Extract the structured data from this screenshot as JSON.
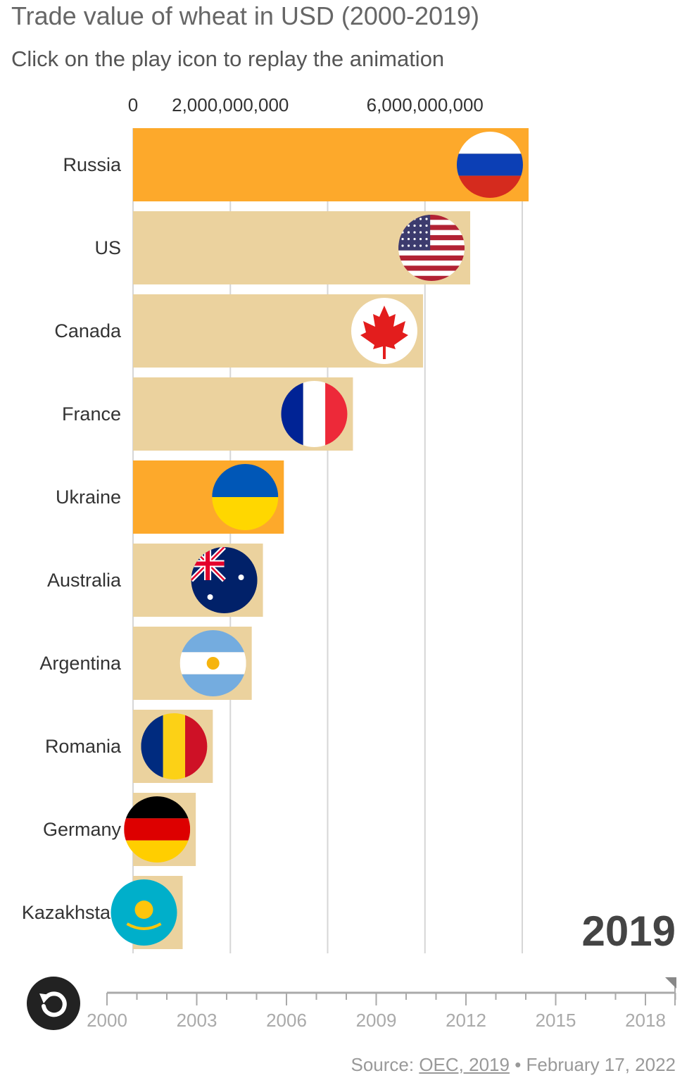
{
  "header": {
    "title": "Trade value of wheat in USD (2000-2019)",
    "subtitle": "Click on the play icon to replay the animation"
  },
  "current_year": "2019",
  "controls": {
    "replay_icon": "replay-icon"
  },
  "timeline": {
    "ticks": [
      "2000",
      "2003",
      "2006",
      "2009",
      "2012",
      "2015",
      "2018"
    ]
  },
  "footer": {
    "source_prefix": "Source: ",
    "source_link": "OEC, 2019",
    "separator": " • ",
    "date": "February 17, 2022"
  },
  "colors": {
    "highlight": "#FDA92B",
    "default": "#EBD29E",
    "grid": "#d6d6d6"
  },
  "chart_data": {
    "type": "bar",
    "orientation": "horizontal",
    "title": "Trade value of wheat in USD (2000-2019)",
    "axis_ticks": [
      {
        "value": 0,
        "label": "0"
      },
      {
        "value": 2000000000,
        "label": "2,000,000,000"
      },
      {
        "value": 6000000000,
        "label": "6,000,000,000"
      }
    ],
    "gridlines": [
      0,
      2000000000,
      4000000000,
      6000000000,
      8000000000
    ],
    "xlim": [
      0,
      8000000000
    ],
    "categories": [
      "Russia",
      "US",
      "Canada",
      "France",
      "Ukraine",
      "Australia",
      "Argentina",
      "Romania",
      "Germany",
      "Kazakhstan"
    ],
    "values": [
      8130000000,
      6930000000,
      5960000000,
      4520000000,
      3100000000,
      2670000000,
      2440000000,
      1640000000,
      1290000000,
      1020000000
    ],
    "highlighted": [
      true,
      false,
      false,
      false,
      true,
      false,
      false,
      false,
      false,
      false
    ],
    "flags": [
      "russia-flag-icon",
      "us-flag-icon",
      "canada-flag-icon",
      "france-flag-icon",
      "ukraine-flag-icon",
      "australia-flag-icon",
      "argentina-flag-icon",
      "romania-flag-icon",
      "germany-flag-icon",
      "kazakhstan-flag-icon"
    ]
  }
}
